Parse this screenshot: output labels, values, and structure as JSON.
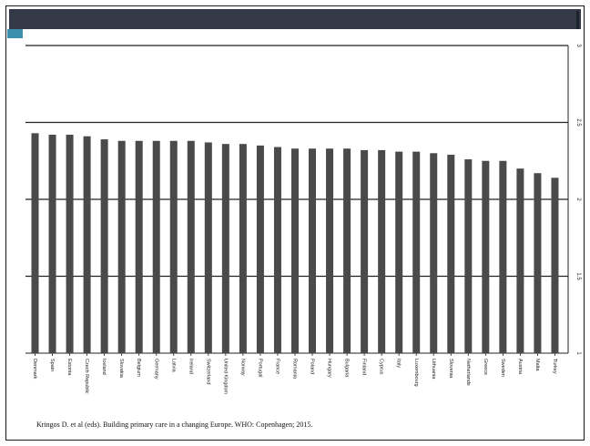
{
  "theme": {
    "band_color": "#333946",
    "accent_color": "#3d8fb0",
    "bar_color": "#4a4a4a",
    "grid_color": "#222222"
  },
  "footer": {
    "citation": "Kringos D. et al (eds). Building primary care in a changing Europe. WHO: Copenhagen; 2015."
  },
  "chart_data": {
    "type": "bar",
    "title": "",
    "xlabel": "",
    "ylabel": "",
    "ylim": [
      1,
      3
    ],
    "yticks": [
      "1",
      "1.5",
      "2",
      "2.5",
      "3"
    ],
    "ytick_values": [
      1,
      1.5,
      2,
      2.5,
      3
    ],
    "grid": true,
    "categories": [
      "Denmark",
      "Spain",
      "Estonia",
      "Czech Republic",
      "Iceland",
      "Slovakia",
      "Belgium",
      "Germany",
      "Latvia",
      "Ireland",
      "Switzerland",
      "United Kingdom",
      "Norway",
      "Portugal",
      "France",
      "Romania",
      "Poland",
      "Hungary",
      "Bulgaria",
      "Finland",
      "Cyprus",
      "Italy",
      "Luxembourg",
      "Lithuania",
      "Slovenia",
      "Netherlands",
      "Greece",
      "Sweden",
      "Austria",
      "Malta",
      "Turkey"
    ],
    "values": [
      2.43,
      2.42,
      2.42,
      2.41,
      2.39,
      2.38,
      2.38,
      2.38,
      2.38,
      2.38,
      2.37,
      2.36,
      2.36,
      2.35,
      2.34,
      2.33,
      2.33,
      2.33,
      2.33,
      2.32,
      2.32,
      2.31,
      2.31,
      2.3,
      2.29,
      2.26,
      2.25,
      2.25,
      2.2,
      2.17,
      2.14
    ]
  }
}
